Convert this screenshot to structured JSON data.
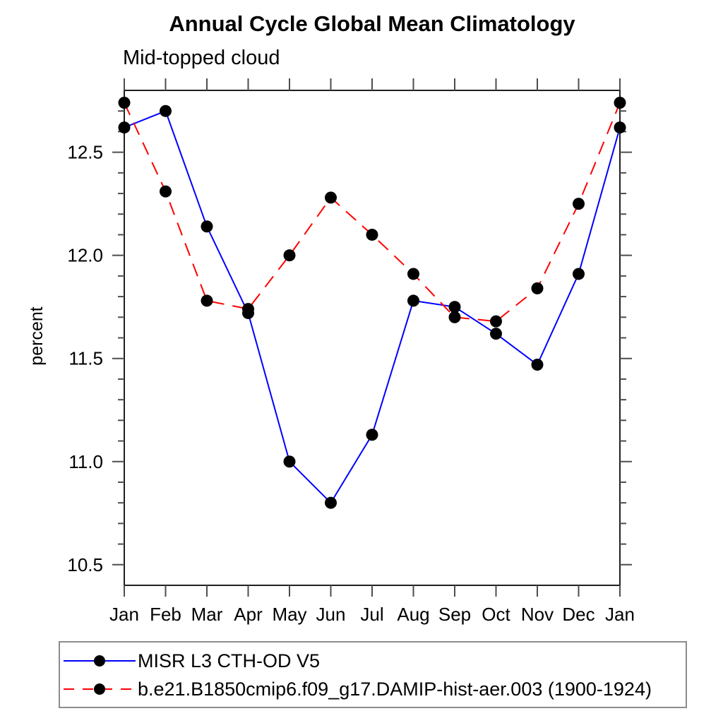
{
  "chart_data": {
    "type": "line",
    "title": "Annual Cycle Global Mean Climatology",
    "subtitle": "Mid-topped cloud",
    "ylabel": "percent",
    "xlabel": "",
    "categories": [
      "Jan",
      "Feb",
      "Mar",
      "Apr",
      "May",
      "Jun",
      "Jul",
      "Aug",
      "Sep",
      "Oct",
      "Nov",
      "Dec",
      "Jan"
    ],
    "series": [
      {
        "name": "MISR L3 CTH-OD V5",
        "color": "#0000ff",
        "line_style": "solid",
        "marker": "filled-circle",
        "marker_color": "#000000",
        "values": [
          12.62,
          12.7,
          12.14,
          11.72,
          11.0,
          10.8,
          11.13,
          11.78,
          11.75,
          11.62,
          11.47,
          11.91,
          12.62
        ]
      },
      {
        "name": "b.e21.B1850cmip6.f09_g17.DAMIP-hist-aer.003 (1900-1924)",
        "color": "#ff0000",
        "line_style": "dashed",
        "marker": "filled-circle",
        "marker_color": "#000000",
        "values": [
          12.74,
          12.31,
          11.78,
          11.74,
          12.0,
          12.28,
          12.1,
          11.91,
          11.7,
          11.68,
          11.84,
          12.25,
          12.74
        ]
      }
    ],
    "ylim": [
      10.4,
      12.8
    ],
    "ytick_major": [
      10.5,
      11.0,
      11.5,
      12.0,
      12.5
    ],
    "ytick_labels": [
      "10.5",
      "11.0",
      "11.5",
      "12.0",
      "12.5"
    ],
    "ytick_minor_step": 0.1,
    "grid": false,
    "legend_position": "bottom-left"
  },
  "colors": {
    "axis": "#1f1f1f",
    "tick": "#4d4d4d",
    "text": "#000000",
    "legend_border": "#8d8d8d",
    "series_blue": "#0000ff",
    "series_red": "#ff0000",
    "marker": "#000000"
  }
}
